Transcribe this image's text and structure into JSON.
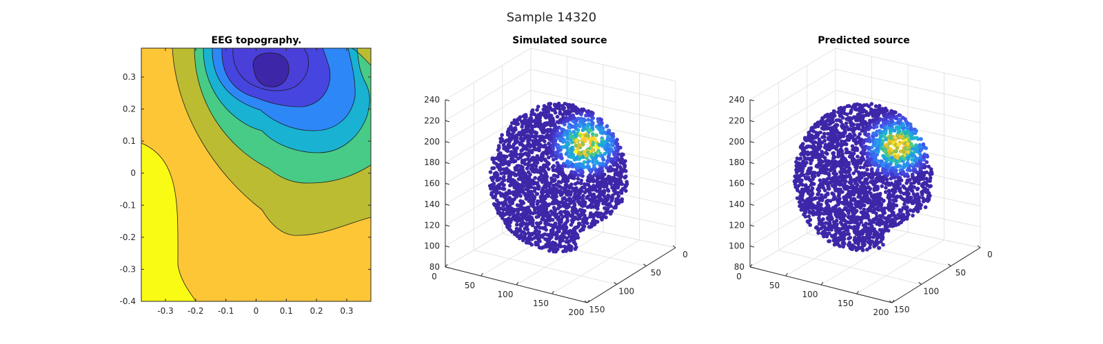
{
  "figure": {
    "title": "Sample 14320"
  },
  "chart_data": [
    {
      "type": "contour",
      "title": "EEG topography.",
      "xlim": [
        -0.38,
        0.38
      ],
      "ylim": [
        -0.4,
        0.39
      ],
      "xticks": [
        -0.3,
        -0.2,
        -0.1,
        0,
        0.1,
        0.2,
        0.3
      ],
      "xtick_labels": [
        "-0.3",
        "-0.2",
        "-0.1",
        "0",
        "0.1",
        "0.2",
        "0.3"
      ],
      "yticks": [
        0.3,
        0.2,
        0.1,
        0,
        -0.1,
        -0.2,
        -0.3,
        -0.4
      ],
      "ytick_labels": [
        "0.3",
        "0.2",
        "0.1",
        "0",
        "-0.1",
        "-0.2",
        "-0.3",
        "-0.4"
      ],
      "colormap": [
        "#3e26a8",
        "#4745e0",
        "#2e87f7",
        "#19b2d3",
        "#48cb86",
        "#bbbc32",
        "#fcc636",
        "#f9fb15"
      ],
      "min_center": [
        0.05,
        0.33
      ],
      "max_region": "lower-left"
    },
    {
      "type": "scatter3d",
      "title": "Simulated source",
      "zticks": [
        240,
        220,
        200,
        180,
        160,
        140,
        120,
        100,
        80
      ],
      "xticks": [
        0,
        50,
        100,
        150,
        200
      ],
      "yticks": [
        0,
        50,
        100,
        150
      ],
      "hotspot": "upper-right of cloud",
      "background_color": "#3e26a8"
    },
    {
      "type": "scatter3d",
      "title": "Predicted source",
      "zticks": [
        240,
        220,
        200,
        180,
        160,
        140,
        120,
        100,
        80
      ],
      "xticks": [
        0,
        50,
        100,
        150,
        200
      ],
      "yticks": [
        0,
        50,
        100,
        150
      ],
      "hotspot": "upper-right of cloud",
      "background_color": "#3e26a8"
    }
  ]
}
